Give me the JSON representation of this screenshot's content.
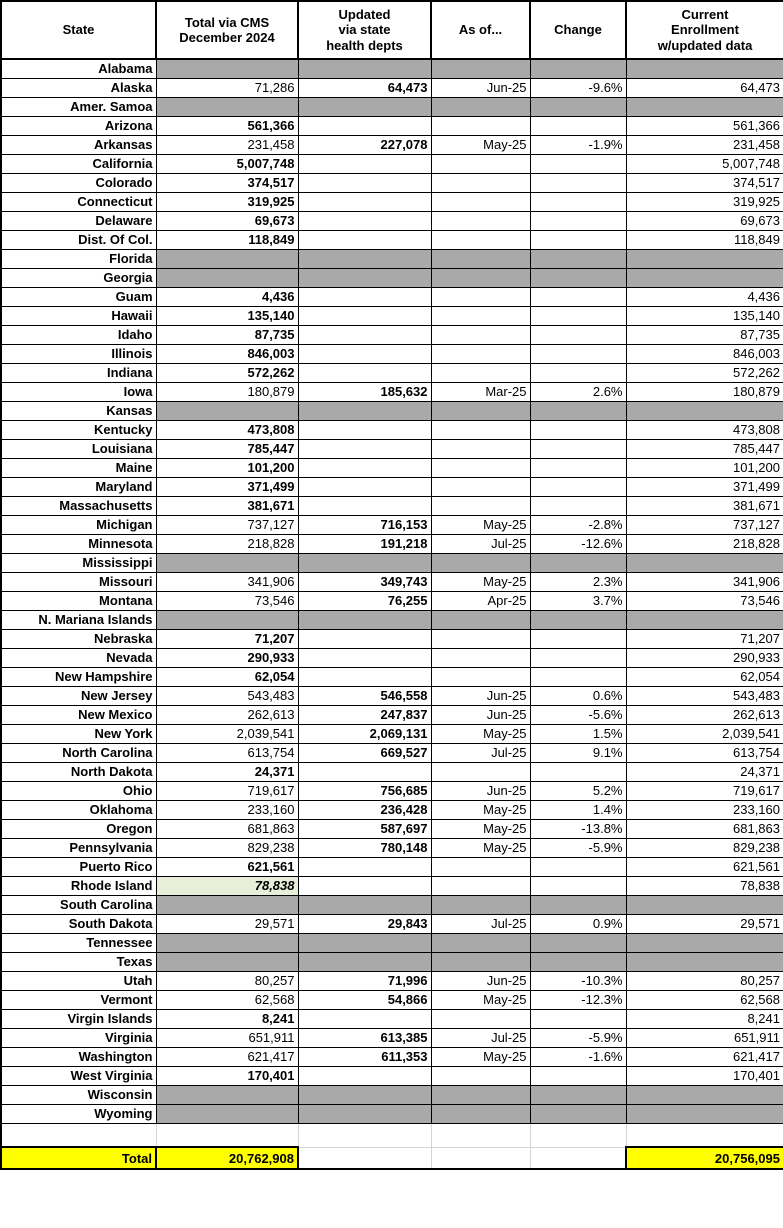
{
  "colors": {
    "shaded_cell": "#a9a9a9",
    "rhode_island_highlight": "#e7eed9",
    "total_fill": "#ffff00",
    "faint_grid": "#d4d4d4",
    "border": "#000000"
  },
  "table": {
    "columns": [
      {
        "key": "state",
        "label": "State"
      },
      {
        "key": "cms",
        "label": "Total via CMS\nDecember 2024"
      },
      {
        "key": "updated",
        "label": "Updated\nvia state\nhealth depts"
      },
      {
        "key": "as_of",
        "label": "As of..."
      },
      {
        "key": "change",
        "label": "Change"
      },
      {
        "key": "current",
        "label": "Current\nEnrollment\nw/updated data"
      }
    ],
    "rows": [
      {
        "state": "Alabama",
        "cms": "",
        "updated": "",
        "as_of": "",
        "change": "",
        "current": "",
        "shaded": true
      },
      {
        "state": "Alaska",
        "cms": "71,286",
        "updated": "64,473",
        "as_of": "Jun-25",
        "change": "-9.6%",
        "current": "64,473",
        "shaded": false
      },
      {
        "state": "Amer. Samoa",
        "cms": "",
        "updated": "",
        "as_of": "",
        "change": "",
        "current": "",
        "shaded": true
      },
      {
        "state": "Arizona",
        "cms": "561,366",
        "updated": "",
        "as_of": "",
        "change": "",
        "current": "561,366",
        "shaded": false
      },
      {
        "state": "Arkansas",
        "cms": "231,458",
        "updated": "227,078",
        "as_of": "May-25",
        "change": "-1.9%",
        "current": "231,458",
        "shaded": false
      },
      {
        "state": "California",
        "cms": "5,007,748",
        "updated": "",
        "as_of": "",
        "change": "",
        "current": "5,007,748",
        "shaded": false
      },
      {
        "state": "Colorado",
        "cms": "374,517",
        "updated": "",
        "as_of": "",
        "change": "",
        "current": "374,517",
        "shaded": false
      },
      {
        "state": "Connecticut",
        "cms": "319,925",
        "updated": "",
        "as_of": "",
        "change": "",
        "current": "319,925",
        "shaded": false
      },
      {
        "state": "Delaware",
        "cms": "69,673",
        "updated": "",
        "as_of": "",
        "change": "",
        "current": "69,673",
        "shaded": false
      },
      {
        "state": "Dist. Of Col.",
        "cms": "118,849",
        "updated": "",
        "as_of": "",
        "change": "",
        "current": "118,849",
        "shaded": false
      },
      {
        "state": "Florida",
        "cms": "",
        "updated": "",
        "as_of": "",
        "change": "",
        "current": "",
        "shaded": true
      },
      {
        "state": "Georgia",
        "cms": "",
        "updated": "",
        "as_of": "",
        "change": "",
        "current": "",
        "shaded": true
      },
      {
        "state": "Guam",
        "cms": "4,436",
        "updated": "",
        "as_of": "",
        "change": "",
        "current": "4,436",
        "shaded": false
      },
      {
        "state": "Hawaii",
        "cms": "135,140",
        "updated": "",
        "as_of": "",
        "change": "",
        "current": "135,140",
        "shaded": false
      },
      {
        "state": "Idaho",
        "cms": "87,735",
        "updated": "",
        "as_of": "",
        "change": "",
        "current": "87,735",
        "shaded": false
      },
      {
        "state": "Illinois",
        "cms": "846,003",
        "updated": "",
        "as_of": "",
        "change": "",
        "current": "846,003",
        "shaded": false
      },
      {
        "state": "Indiana",
        "cms": "572,262",
        "updated": "",
        "as_of": "",
        "change": "",
        "current": "572,262",
        "shaded": false
      },
      {
        "state": "Iowa",
        "cms": "180,879",
        "updated": "185,632",
        "as_of": "Mar-25",
        "change": "2.6%",
        "current": "180,879",
        "shaded": false
      },
      {
        "state": "Kansas",
        "cms": "",
        "updated": "",
        "as_of": "",
        "change": "",
        "current": "",
        "shaded": true
      },
      {
        "state": "Kentucky",
        "cms": "473,808",
        "updated": "",
        "as_of": "",
        "change": "",
        "current": "473,808",
        "shaded": false
      },
      {
        "state": "Louisiana",
        "cms": "785,447",
        "updated": "",
        "as_of": "",
        "change": "",
        "current": "785,447",
        "shaded": false
      },
      {
        "state": "Maine",
        "cms": "101,200",
        "updated": "",
        "as_of": "",
        "change": "",
        "current": "101,200",
        "shaded": false
      },
      {
        "state": "Maryland",
        "cms": "371,499",
        "updated": "",
        "as_of": "",
        "change": "",
        "current": "371,499",
        "shaded": false
      },
      {
        "state": "Massachusetts",
        "cms": "381,671",
        "updated": "",
        "as_of": "",
        "change": "",
        "current": "381,671",
        "shaded": false
      },
      {
        "state": "Michigan",
        "cms": "737,127",
        "updated": "716,153",
        "as_of": "May-25",
        "change": "-2.8%",
        "current": "737,127",
        "shaded": false
      },
      {
        "state": "Minnesota",
        "cms": "218,828",
        "updated": "191,218",
        "as_of": "Jul-25",
        "change": "-12.6%",
        "current": "218,828",
        "shaded": false
      },
      {
        "state": "Mississippi",
        "cms": "",
        "updated": "",
        "as_of": "",
        "change": "",
        "current": "",
        "shaded": true
      },
      {
        "state": "Missouri",
        "cms": "341,906",
        "updated": "349,743",
        "as_of": "May-25",
        "change": "2.3%",
        "current": "341,906",
        "shaded": false
      },
      {
        "state": "Montana",
        "cms": "73,546",
        "updated": "76,255",
        "as_of": "Apr-25",
        "change": "3.7%",
        "current": "73,546",
        "shaded": false
      },
      {
        "state": "N. Mariana Islands",
        "cms": "",
        "updated": "",
        "as_of": "",
        "change": "",
        "current": "",
        "shaded": true
      },
      {
        "state": "Nebraska",
        "cms": "71,207",
        "updated": "",
        "as_of": "",
        "change": "",
        "current": "71,207",
        "shaded": false
      },
      {
        "state": "Nevada",
        "cms": "290,933",
        "updated": "",
        "as_of": "",
        "change": "",
        "current": "290,933",
        "shaded": false
      },
      {
        "state": "New Hampshire",
        "cms": "62,054",
        "updated": "",
        "as_of": "",
        "change": "",
        "current": "62,054",
        "shaded": false
      },
      {
        "state": "New Jersey",
        "cms": "543,483",
        "updated": "546,558",
        "as_of": "Jun-25",
        "change": "0.6%",
        "current": "543,483",
        "shaded": false
      },
      {
        "state": "New Mexico",
        "cms": "262,613",
        "updated": "247,837",
        "as_of": "Jun-25",
        "change": "-5.6%",
        "current": "262,613",
        "shaded": false
      },
      {
        "state": "New York",
        "cms": "2,039,541",
        "updated": "2,069,131",
        "as_of": "May-25",
        "change": "1.5%",
        "current": "2,039,541",
        "shaded": false
      },
      {
        "state": "North Carolina",
        "cms": "613,754",
        "updated": "669,527",
        "as_of": "Jul-25",
        "change": "9.1%",
        "current": "613,754",
        "shaded": false
      },
      {
        "state": "North Dakota",
        "cms": "24,371",
        "updated": "",
        "as_of": "",
        "change": "",
        "current": "24,371",
        "shaded": false
      },
      {
        "state": "Ohio",
        "cms": "719,617",
        "updated": "756,685",
        "as_of": "Jun-25",
        "change": "5.2%",
        "current": "719,617",
        "shaded": false
      },
      {
        "state": "Oklahoma",
        "cms": "233,160",
        "updated": "236,428",
        "as_of": "May-25",
        "change": "1.4%",
        "current": "233,160",
        "shaded": false
      },
      {
        "state": "Oregon",
        "cms": "681,863",
        "updated": "587,697",
        "as_of": "May-25",
        "change": "-13.8%",
        "current": "681,863",
        "shaded": false
      },
      {
        "state": "Pennsylvania",
        "cms": "829,238",
        "updated": "780,148",
        "as_of": "May-25",
        "change": "-5.9%",
        "current": "829,238",
        "shaded": false
      },
      {
        "state": "Puerto Rico",
        "cms": "621,561",
        "updated": "",
        "as_of": "",
        "change": "",
        "current": "621,561",
        "shaded": false
      },
      {
        "state": "Rhode Island",
        "cms": "78,838",
        "updated": "",
        "as_of": "",
        "change": "",
        "current": "78,838",
        "shaded": false,
        "cms_highlight": true
      },
      {
        "state": "South Carolina",
        "cms": "",
        "updated": "",
        "as_of": "",
        "change": "",
        "current": "",
        "shaded": true
      },
      {
        "state": "South Dakota",
        "cms": "29,571",
        "updated": "29,843",
        "as_of": "Jul-25",
        "change": "0.9%",
        "current": "29,571",
        "shaded": false
      },
      {
        "state": "Tennessee",
        "cms": "",
        "updated": "",
        "as_of": "",
        "change": "",
        "current": "",
        "shaded": true
      },
      {
        "state": "Texas",
        "cms": "",
        "updated": "",
        "as_of": "",
        "change": "",
        "current": "",
        "shaded": true
      },
      {
        "state": "Utah",
        "cms": "80,257",
        "updated": "71,996",
        "as_of": "Jun-25",
        "change": "-10.3%",
        "current": "80,257",
        "shaded": false
      },
      {
        "state": "Vermont",
        "cms": "62,568",
        "updated": "54,866",
        "as_of": "May-25",
        "change": "-12.3%",
        "current": "62,568",
        "shaded": false
      },
      {
        "state": "Virgin Islands",
        "cms": "8,241",
        "updated": "",
        "as_of": "",
        "change": "",
        "current": "8,241",
        "shaded": false
      },
      {
        "state": "Virginia",
        "cms": "651,911",
        "updated": "613,385",
        "as_of": "Jul-25",
        "change": "-5.9%",
        "current": "651,911",
        "shaded": false
      },
      {
        "state": "Washington",
        "cms": "621,417",
        "updated": "611,353",
        "as_of": "May-25",
        "change": "-1.6%",
        "current": "621,417",
        "shaded": false
      },
      {
        "state": "West Virginia",
        "cms": "170,401",
        "updated": "",
        "as_of": "",
        "change": "",
        "current": "170,401",
        "shaded": false
      },
      {
        "state": "Wisconsin",
        "cms": "",
        "updated": "",
        "as_of": "",
        "change": "",
        "current": "",
        "shaded": true
      },
      {
        "state": "Wyoming",
        "cms": "",
        "updated": "",
        "as_of": "",
        "change": "",
        "current": "",
        "shaded": true
      }
    ],
    "total": {
      "label": "Total",
      "cms": "20,762,908",
      "current": "20,756,095"
    }
  }
}
